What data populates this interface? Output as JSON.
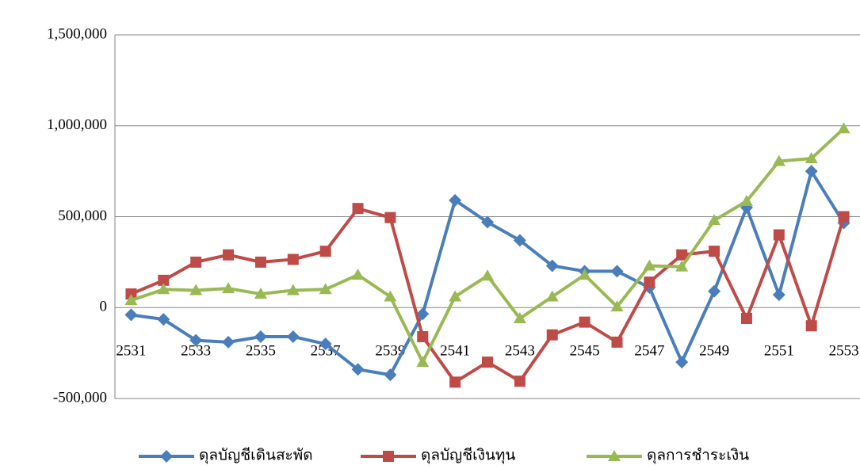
{
  "chart_data": {
    "type": "line",
    "categories": [
      "2531",
      null,
      "2533",
      null,
      "2535",
      null,
      "2537",
      null,
      "2539",
      null,
      "2541",
      null,
      "2543",
      null,
      "2545",
      null,
      "2547",
      null,
      "2549",
      null,
      "2551",
      null,
      "2553"
    ],
    "series": [
      {
        "name": "ดุลบัญชีเดินสะพัด",
        "color": "#4a7ebb",
        "marker": "diamond",
        "values": [
          -40000,
          -65000,
          -180000,
          -190000,
          -160000,
          -160000,
          -200000,
          -340000,
          -370000,
          -35000,
          590000,
          470000,
          370000,
          230000,
          200000,
          200000,
          110000,
          -300000,
          90000,
          550000,
          70000,
          750000,
          465000
        ]
      },
      {
        "name": "ดุลบัญชีเงินทุน",
        "color": "#be4b48",
        "marker": "square",
        "values": [
          75000,
          150000,
          250000,
          290000,
          250000,
          265000,
          310000,
          545000,
          495000,
          -160000,
          -410000,
          -300000,
          -405000,
          -150000,
          -80000,
          -190000,
          140000,
          290000,
          310000,
          -60000,
          400000,
          -100000,
          500000
        ]
      },
      {
        "name": "ดุลการชำระเงิน",
        "color": "#98b954",
        "marker": "triangle",
        "values": [
          40000,
          100000,
          95000,
          105000,
          75000,
          95000,
          100000,
          180000,
          60000,
          -300000,
          60000,
          175000,
          -60000,
          60000,
          180000,
          5000,
          230000,
          225000,
          480000,
          585000,
          805000,
          820000,
          985000
        ]
      }
    ],
    "ylim": [
      -500000,
      1500000
    ],
    "yticks": [
      {
        "value": -500000,
        "label": "-500,000"
      },
      0,
      {
        "value": 500000,
        "label": "500,000"
      },
      {
        "value": 1000000,
        "label": "1,000,000"
      },
      {
        "value": 1500000,
        "label": "1,500,000"
      }
    ],
    "grid": true,
    "legend": "bottom"
  }
}
